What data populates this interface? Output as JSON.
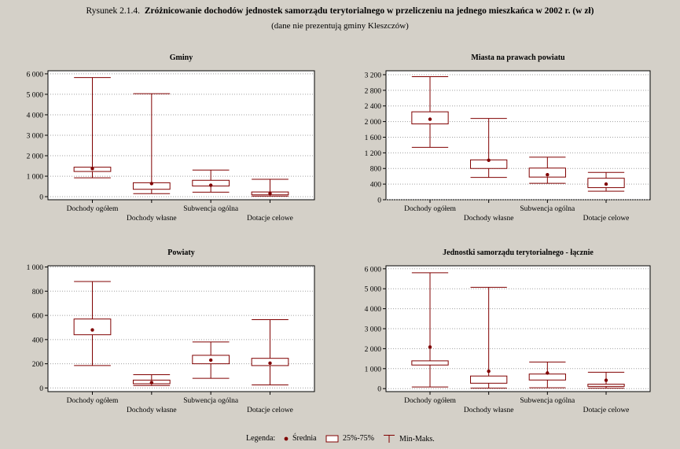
{
  "header": {
    "label": "Rysunek 2.1.4.",
    "title": "Zróżnicowanie dochodów jednostek samorządu terytorialnego w przeliczeniu na jednego mieszkańca w 2002 r. (w zł)",
    "subtitle": "(dane nie prezentują gminy Kleszczów)"
  },
  "legend": {
    "label": "Legenda:",
    "mean": "Średnia",
    "box": "25%-75%",
    "whisker": "Min-Maks."
  },
  "colors": {
    "background": "#d4d0c8",
    "plot": "#ffffff",
    "box": "#800000",
    "mean": "#800000",
    "grid": "#a0a0a0"
  },
  "chart_data": [
    {
      "type": "box",
      "title": "Gminy",
      "categories": [
        "Dochody ogółem",
        "Dochody własne",
        "Subwencja ogólna",
        "Dotacje celowe"
      ],
      "ylim": [
        -150,
        6150
      ],
      "yticks": [
        0,
        1000,
        2000,
        3000,
        4000,
        5000,
        6000
      ],
      "yticklabels": [
        "0",
        "1 000",
        "2 000",
        "3 000",
        "4 000",
        "5 000",
        "6 000"
      ],
      "min": [
        920,
        150,
        220,
        30
      ],
      "q1": [
        1230,
        360,
        520,
        90
      ],
      "q3": [
        1440,
        680,
        800,
        230
      ],
      "max": [
        5820,
        5030,
        1300,
        850
      ],
      "mean": [
        1370,
        640,
        560,
        160
      ],
      "grid": true
    },
    {
      "type": "box",
      "title": "Miasta na prawach powiatu",
      "categories": [
        "Dochody ogółem",
        "Dochody własne",
        "Subwencja ogólna",
        "Dotacje celowe"
      ],
      "ylim": [
        0,
        3300
      ],
      "yticks": [
        0,
        400,
        800,
        1200,
        1600,
        2000,
        2400,
        2800,
        3200
      ],
      "yticklabels": [
        "0",
        "400",
        "800",
        "1 200",
        "1 600",
        "2 000",
        "2 400",
        "2 800",
        "3 200"
      ],
      "min": [
        1340,
        570,
        420,
        220
      ],
      "q1": [
        1940,
        800,
        580,
        310
      ],
      "q3": [
        2250,
        1020,
        810,
        550
      ],
      "max": [
        3150,
        2080,
        1090,
        700
      ],
      "mean": [
        2060,
        1010,
        640,
        400
      ],
      "grid": true
    },
    {
      "type": "box",
      "title": "Powiaty",
      "categories": [
        "Dochody ogółem",
        "Dochody własne",
        "Subwencja ogólna",
        "Dotacje celowe"
      ],
      "ylim": [
        -30,
        1010
      ],
      "yticks": [
        0,
        200,
        400,
        600,
        800,
        1000
      ],
      "yticklabels": [
        "0",
        "200",
        "400",
        "600",
        "800",
        "1 000"
      ],
      "min": [
        185,
        20,
        80,
        25
      ],
      "q1": [
        440,
        35,
        200,
        185
      ],
      "q3": [
        570,
        65,
        270,
        245
      ],
      "max": [
        880,
        110,
        380,
        565
      ],
      "mean": [
        480,
        45,
        230,
        205
      ],
      "grid": true
    },
    {
      "type": "box",
      "title": "Jednostki samorządu terytorialnego - łącznie",
      "categories": [
        "Dochody ogółem",
        "Dochody własne",
        "Subwencja ogólna",
        "Dotacje celowe"
      ],
      "ylim": [
        -150,
        6150
      ],
      "yticks": [
        0,
        1000,
        2000,
        3000,
        4000,
        5000,
        6000
      ],
      "yticklabels": [
        "0",
        "1 000",
        "2 000",
        "3 000",
        "4 000",
        "5 000",
        "6 000"
      ],
      "min": [
        80,
        20,
        40,
        20
      ],
      "q1": [
        1180,
        270,
        430,
        110
      ],
      "q3": [
        1390,
        630,
        730,
        220
      ],
      "max": [
        5800,
        5070,
        1330,
        820
      ],
      "mean": [
        2080,
        870,
        780,
        420
      ],
      "grid": true
    }
  ]
}
